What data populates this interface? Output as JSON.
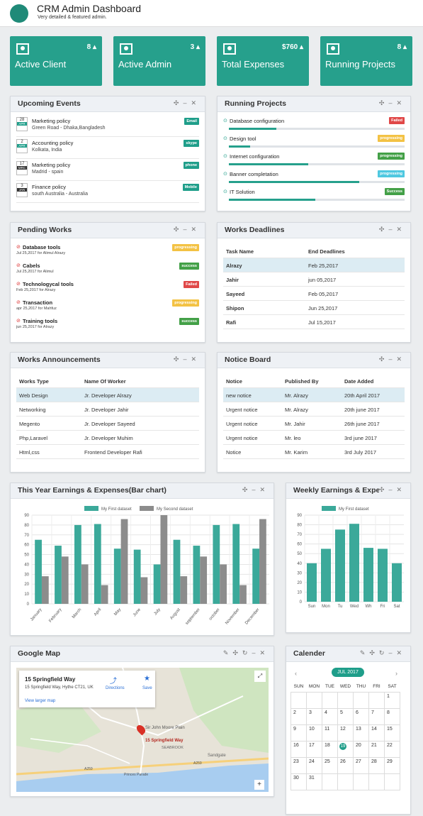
{
  "header": {
    "title": "CRM Admin Dashboard",
    "subtitle": "Very detailed & featured admin."
  },
  "stats": [
    {
      "label": "Active Client",
      "count": "8",
      "icon": "user-add-icon"
    },
    {
      "label": "Active Admin",
      "count": "3",
      "icon": "admin-icon"
    },
    {
      "label": "Total Expenses",
      "count": "$760",
      "icon": "money-icon"
    },
    {
      "label": "Running Projects",
      "count": "8",
      "icon": "copy-icon"
    }
  ],
  "events": {
    "title": "Upcoming Events",
    "items": [
      {
        "day": "28",
        "mon": "APR",
        "title": "Marketing policy",
        "sub": "Green Road - Dhaka,Bangladesh",
        "tag": "Email"
      },
      {
        "day": "2",
        "mon": "APR",
        "title": "Accounting policy",
        "sub": "Kolkata, India",
        "tag": "skype"
      },
      {
        "day": "17",
        "mon": "MRC",
        "title": "Marketing policy",
        "sub": "Madrid - spain",
        "tag": "phone"
      },
      {
        "day": "3",
        "mon": "JAN",
        "title": "Finance policy",
        "sub": "south Australia - Australia",
        "tag": "Mobile"
      }
    ]
  },
  "projects": {
    "title": "Running Projects",
    "items": [
      {
        "name": "Database configuration",
        "status": "Failed",
        "color": "#e04848",
        "progress": 0.27
      },
      {
        "name": "Design tool",
        "status": "progressing",
        "color": "#f3c244",
        "progress": 0.12
      },
      {
        "name": "Internet configuration",
        "status": "progressing",
        "color": "#43a047",
        "progress": 0.45
      },
      {
        "name": "Banner completation",
        "status": "progressing",
        "color": "#4fc8e0",
        "progress": 0.74
      },
      {
        "name": "IT Solution",
        "status": "Success",
        "color": "#43a047",
        "progress": 0.49
      }
    ]
  },
  "pending": {
    "title": "Pending Works",
    "items": [
      {
        "name": "Database tools",
        "sub": "Jul 25,2017 for Alimul Alrazy",
        "status": "progressing",
        "color": "#f3c244"
      },
      {
        "name": "Cabels",
        "sub": "Jul 25,2017 for Alimul",
        "status": "success",
        "color": "#43a047"
      },
      {
        "name": "Technologycal tools",
        "sub": "Feb 25,2017 for Alrazy",
        "status": "Failed",
        "color": "#e04848"
      },
      {
        "name": "Transaction",
        "sub": "apr 25,2017 for Mahfuz",
        "status": "progressing",
        "color": "#f3c244"
      },
      {
        "name": "Training tools",
        "sub": "jun 25,2017 for Alrazy",
        "status": "success",
        "color": "#43a047"
      }
    ]
  },
  "deadlines": {
    "title": "Works Deadlines",
    "cols": [
      "Task Name",
      "End Deadlines"
    ],
    "rows": [
      [
        "Alrazy",
        "Feb 25,2017"
      ],
      [
        "Jahir",
        "jun 05,2017"
      ],
      [
        "Sayeed",
        "Feb 05,2017"
      ],
      [
        "Shipon",
        "Jun 25,2017"
      ],
      [
        "Rafi",
        "Jul 15,2017"
      ]
    ]
  },
  "announce": {
    "title": "Works Announcements",
    "cols": [
      "Works Type",
      "Name Of Worker"
    ],
    "rows": [
      [
        "Web Design",
        "Jr. Developer Alrazy"
      ],
      [
        "Networking",
        "Jr. Developer Jahir"
      ],
      [
        "Megento",
        "Jr. Developer Sayeed"
      ],
      [
        "Php,Laravel",
        "Jr. Developer Muhim"
      ],
      [
        "Html,css",
        "Frontend Developer Rafi"
      ]
    ]
  },
  "notice": {
    "title": "Notice Board",
    "cols": [
      "Notice",
      "Published By",
      "Date Added"
    ],
    "rows": [
      [
        "new notice",
        "Mr. Alrazy",
        "20th April 2017"
      ],
      [
        "Urgent notice",
        "Mr. Alrazy",
        "20th june 2017"
      ],
      [
        "Urgent notice",
        "Mr. Jahir",
        "26th june 2017"
      ],
      [
        "Urgent notice",
        "Mr. leo",
        "3rd june 2017"
      ],
      [
        "Notice",
        "Mr. Karim",
        "3rd July 2017"
      ]
    ]
  },
  "chart_data": [
    {
      "type": "bar",
      "title": "This Year Earnings & Expenses(Bar chart)",
      "categories": [
        "January",
        "February",
        "March",
        "April",
        "May",
        "June",
        "July",
        "August",
        "september",
        "october",
        "November",
        "December"
      ],
      "series": [
        {
          "name": "My First dataset",
          "color": "#3ba99a",
          "values": [
            65,
            59,
            80,
            81,
            56,
            55,
            40,
            65,
            59,
            80,
            81,
            56
          ]
        },
        {
          "name": "My Second dataset",
          "color": "#8c8c8c",
          "values": [
            28,
            48,
            40,
            19,
            86,
            27,
            90,
            28,
            48,
            40,
            19,
            86
          ]
        }
      ],
      "ylim": [
        0,
        90
      ],
      "yticks": [
        0,
        10,
        20,
        30,
        40,
        50,
        60,
        70,
        80,
        90
      ]
    },
    {
      "type": "bar",
      "title": "Weekly Earnings & Expe",
      "categories": [
        "Sun",
        "Mon",
        "Tu",
        "Wed",
        "Wh",
        "Fri",
        "Sat"
      ],
      "series": [
        {
          "name": "My First dataset",
          "color": "#3ba99a",
          "values": [
            40,
            55,
            75,
            81,
            56,
            55,
            40
          ]
        }
      ],
      "ylim": [
        0,
        90
      ],
      "yticks": [
        0,
        10,
        20,
        30,
        40,
        50,
        60,
        70,
        80,
        90
      ]
    }
  ],
  "map": {
    "title": "Google Map",
    "place": "15 Springfield Way",
    "address": "15 Springfield Way, Hythe CT21, UK",
    "directions": "Directions",
    "save": "Save",
    "larger": "View larger map",
    "pin": "15 Springfield Way",
    "poi": "Sir John Moore Plain",
    "area1": "SEABROOK",
    "area2": "Sandgate",
    "road1": "A259",
    "road2": "A259",
    "road3": "Princes Parade"
  },
  "calendar": {
    "title": "Calender",
    "month": "JUL 2017",
    "days": [
      "SUN",
      "MON",
      "TUE",
      "WED",
      "THU",
      "FRI",
      "SAT"
    ],
    "today": "19"
  }
}
